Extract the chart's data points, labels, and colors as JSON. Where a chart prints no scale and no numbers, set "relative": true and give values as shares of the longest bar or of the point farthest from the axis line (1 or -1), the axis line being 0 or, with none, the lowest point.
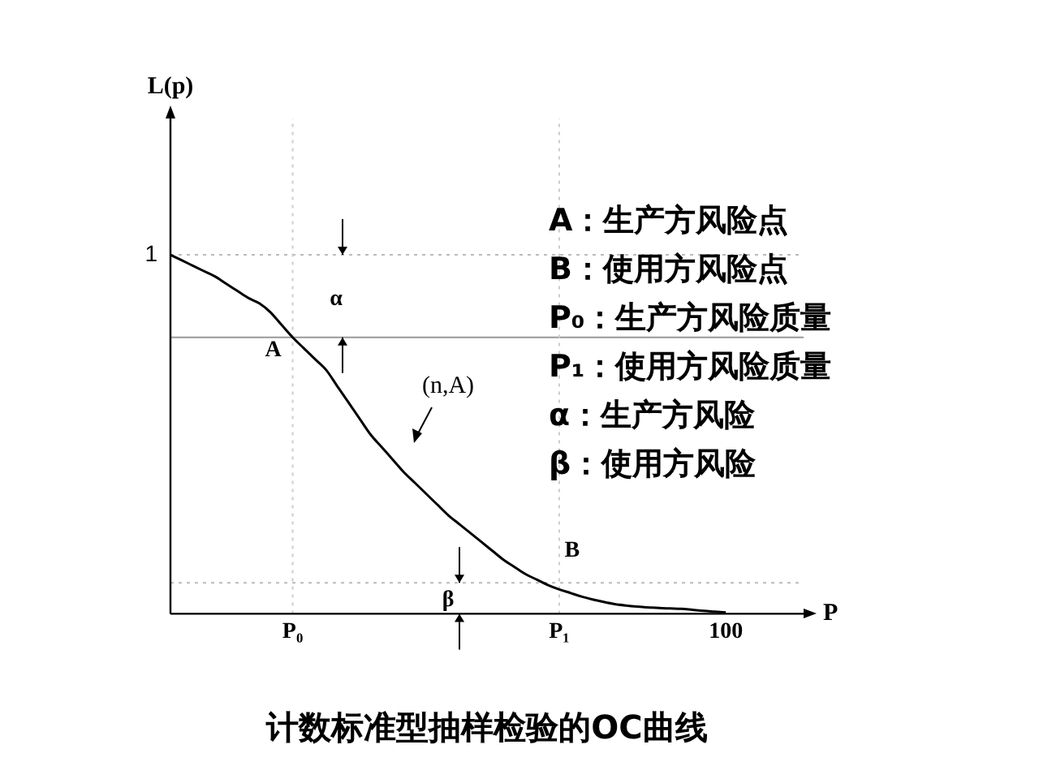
{
  "chart_data": {
    "type": "line",
    "title": "计数标准型抽样检验的OC曲线",
    "xlabel": "P",
    "relative": true,
    "categories": [
      null,
      null,
      null,
      null,
      null,
      null,
      null,
      null,
      null,
      null,
      null,
      "P₀",
      null,
      null,
      null,
      null,
      null,
      null,
      null,
      null,
      null,
      null,
      null,
      null,
      null,
      null,
      null,
      null,
      null,
      null,
      null,
      null,
      null,
      null,
      null,
      "P₁",
      null,
      null,
      null,
      null,
      null,
      null,
      null,
      null,
      null,
      null,
      null,
      null,
      null,
      null,
      "100",
      null,
      null,
      null,
      null,
      null,
      null,
      null
    ],
    "series": [
      {
        "color": "#000000",
        "values": [
          1,
          0.985,
          0.97,
          0.955,
          0.94,
          0.92,
          0.9,
          0.88,
          0.865,
          0.84,
          0.805,
          0.77,
          0.74,
          0.71,
          0.68,
          0.635,
          0.59,
          0.545,
          0.5,
          0.465,
          0.43,
          0.395,
          0.365,
          0.335,
          0.305,
          0.275,
          0.25,
          0.225,
          0.2,
          0.175,
          0.15,
          0.13,
          0.11,
          0.095,
          0.08,
          0.068,
          0.058,
          0.048,
          0.04,
          0.033,
          0.027,
          0.023,
          0.02,
          0.018,
          0.016,
          0.015,
          0.014,
          0.011,
          0.008,
          0.006,
          0.004,
          null,
          null,
          null,
          null,
          null,
          null,
          null
        ]
      }
    ],
    "grid": false,
    "legend": false,
    "marker": "none",
    "line_style": "solid",
    "ref_lines": [
      {
        "axis": "y",
        "value": 1,
        "label": "1",
        "color": "#bbbbbb",
        "line_style": "dotted"
      },
      {
        "axis": "y",
        "value": 0.77,
        "color": "#999999",
        "line_style": "solid"
      },
      {
        "axis": "y",
        "value": 0.086,
        "color": "#bbbbbb",
        "line_style": "dotted"
      },
      {
        "axis": "x",
        "value": "P₀",
        "color": "#cccccc",
        "line_style": "dotted"
      },
      {
        "axis": "x",
        "value": "P₁",
        "color": "#cccccc",
        "line_style": "dotted"
      }
    ],
    "annotations": [
      {
        "text": "A",
        "x": "P₀",
        "y": 0.77
      },
      {
        "text": "B",
        "x": "P₁",
        "y": 0.068
      },
      "α",
      "β",
      "(n,A)",
      "L(p)",
      "A：生产方风险点",
      "B：使用方风险点",
      "P₀：生产方风险质量",
      "P₁：使用方风险质量",
      "α：生产方风险",
      "β：使用方风险"
    ]
  }
}
